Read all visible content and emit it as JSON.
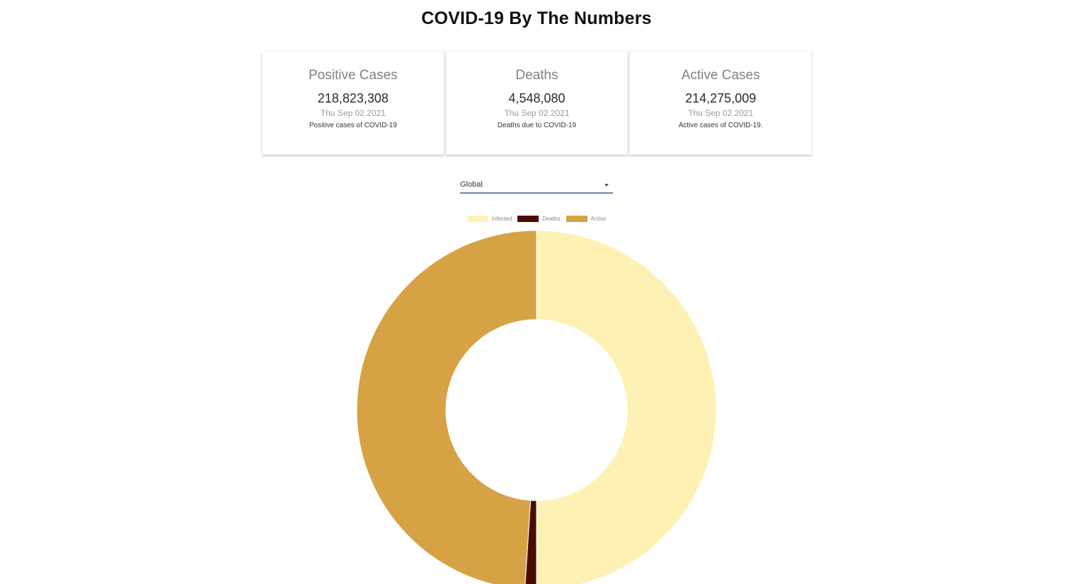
{
  "header": {
    "title": "COVID-19 By The Numbers"
  },
  "cards": [
    {
      "title": "Positive Cases",
      "value": "218,823,308",
      "date": "Thu Sep 02 2021",
      "description": "Positive cases of COVID-19"
    },
    {
      "title": "Deaths",
      "value": "4,548,080",
      "date": "Thu Sep 02 2021",
      "description": "Deaths due to COVID-19"
    },
    {
      "title": "Active Cases",
      "value": "214,275,009",
      "date": "Thu Sep 02 2021",
      "description": "Active cases of COVID-19."
    }
  ],
  "country_select": {
    "selected": "Global"
  },
  "chart_data": {
    "type": "pie",
    "style": "doughnut",
    "legend_position": "top",
    "categories": [
      "Infected",
      "Deaths",
      "Active"
    ],
    "values": [
      218823308,
      4548080,
      214275009
    ],
    "colors": [
      "#fdf2b3",
      "#4a0e00",
      "#d6a244"
    ]
  }
}
